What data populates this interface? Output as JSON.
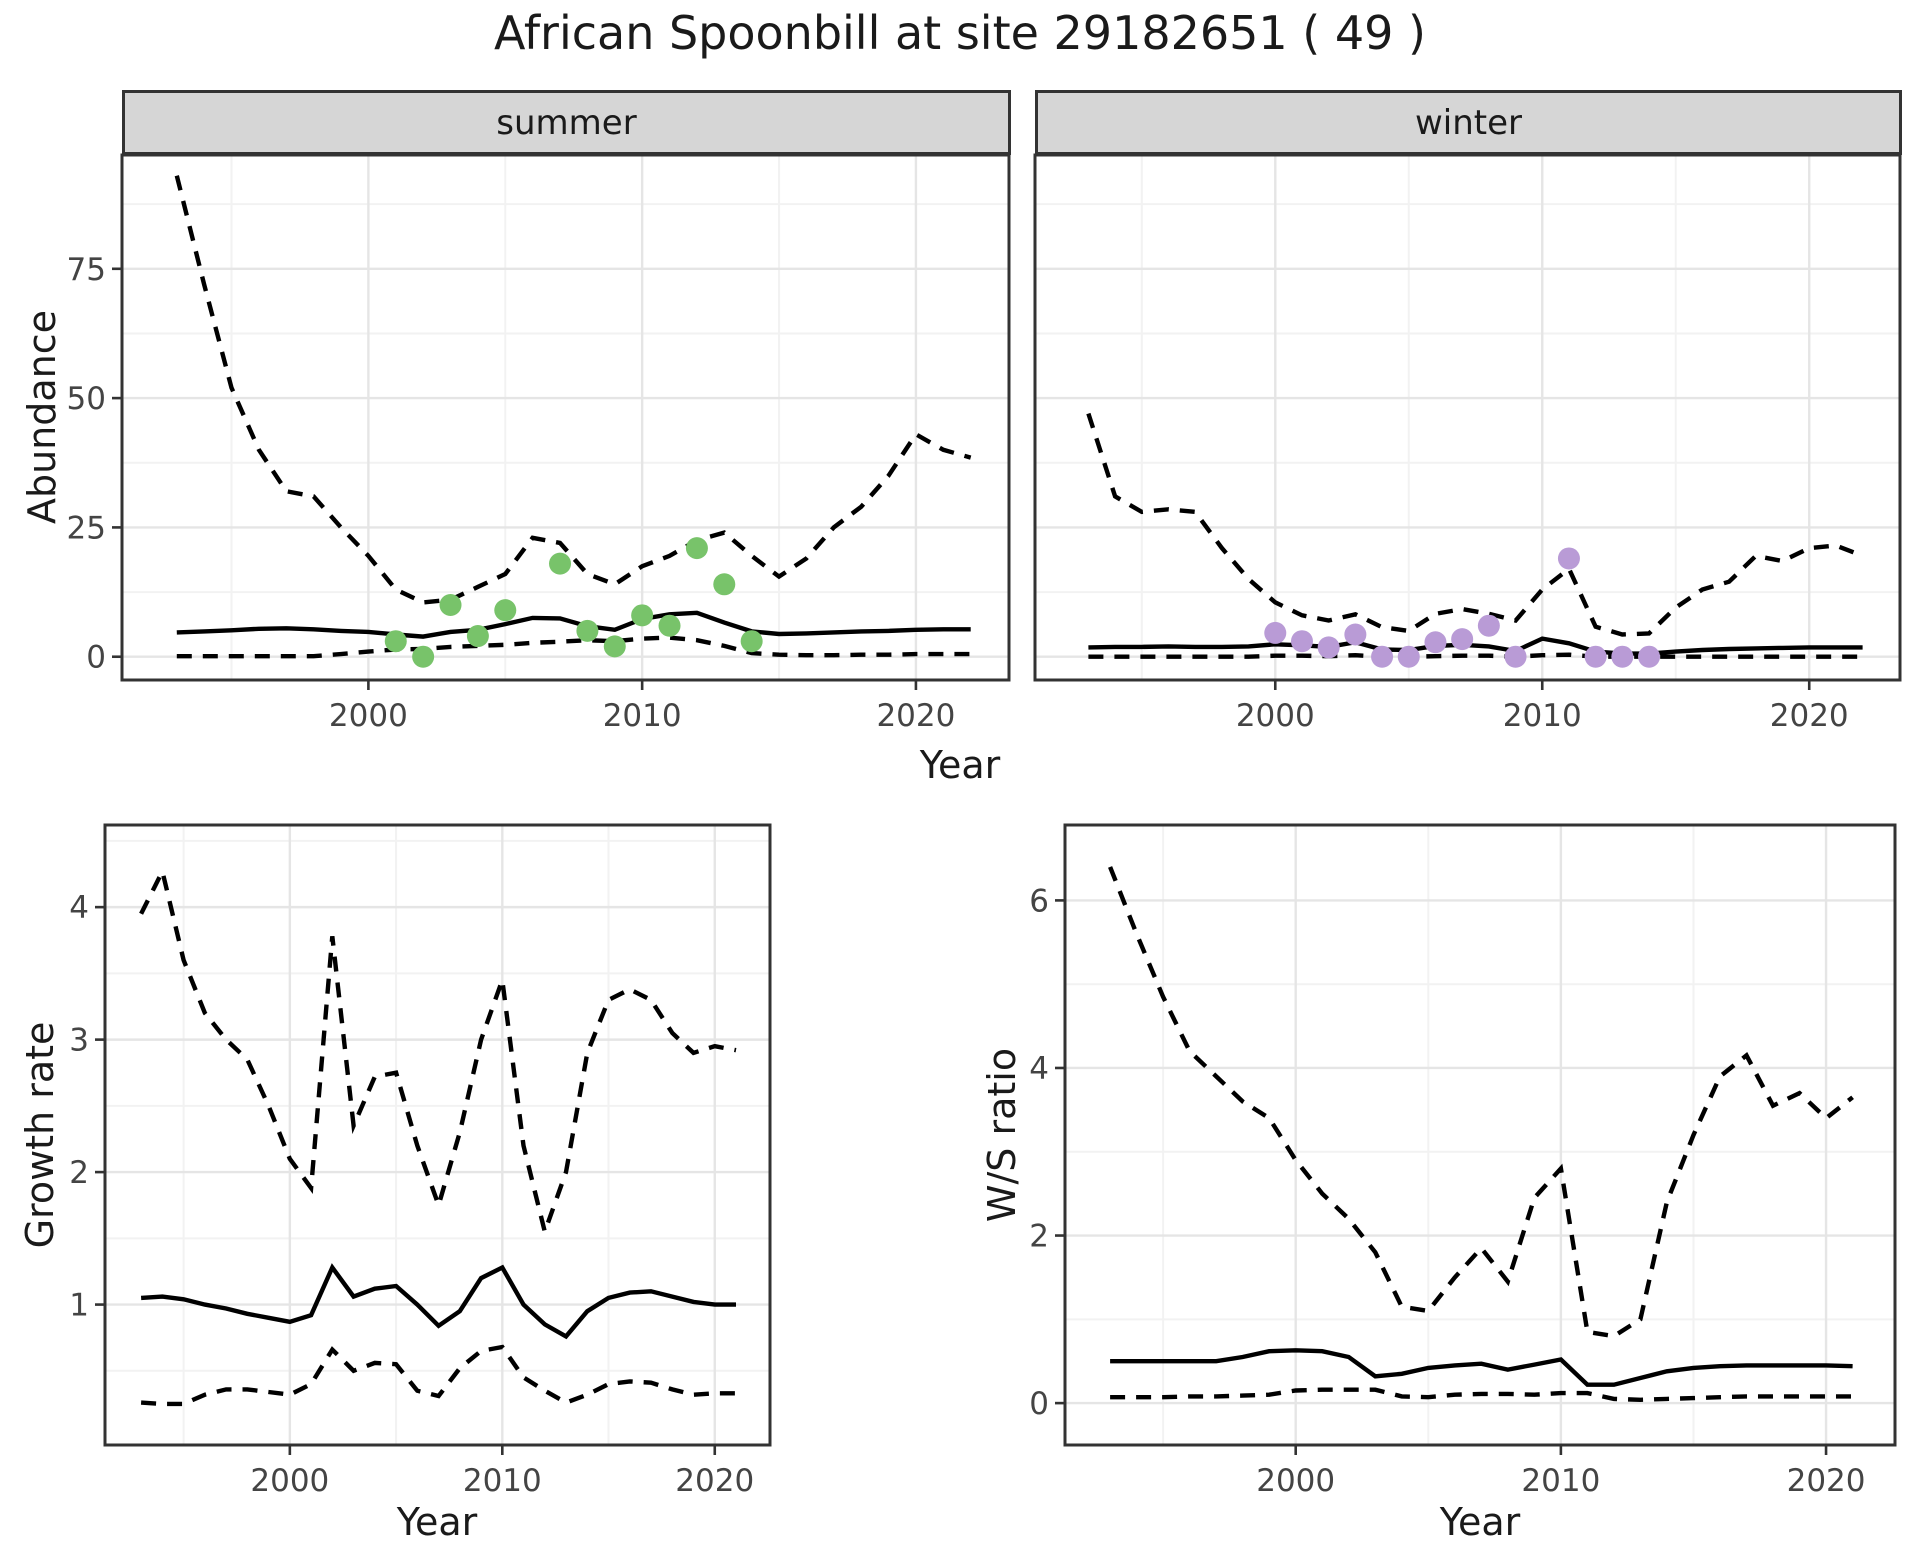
{
  "title": "African Spoonbill at site 29182651 ( 49 )",
  "facets": [
    {
      "label": "summer"
    },
    {
      "label": "winter"
    }
  ],
  "axes": {
    "x_label": "Year",
    "abundance_label": "Abundance",
    "growth_label": "Growth rate",
    "ws_label": "W/S ratio"
  },
  "colors": {
    "line": "#000000",
    "summer_point": "#78c36a",
    "winter_point": "#b99bd6",
    "strip_bg": "#d6d6d6",
    "panel_border": "#333333",
    "grid_major": "#e5e5e5",
    "grid_minor": "#f2f2f2",
    "tick_text": "#444444"
  },
  "chart_data": [
    {
      "type": "line",
      "panel": "summer-abundance",
      "facet": "summer",
      "xlabel": "Year",
      "ylabel": "Abundance",
      "xticks": [
        2000,
        2010,
        2020
      ],
      "yticks": [
        0,
        25,
        50,
        75
      ],
      "xlim": [
        1991,
        2023.4
      ],
      "ylim": [
        -4.5,
        97
      ],
      "years": [
        1993,
        1994,
        1995,
        1996,
        1997,
        1998,
        1999,
        2000,
        2001,
        2002,
        2003,
        2004,
        2005,
        2006,
        2007,
        2008,
        2009,
        2010,
        2011,
        2012,
        2013,
        2014,
        2015,
        2016,
        2017,
        2018,
        2019,
        2020,
        2021,
        2022
      ],
      "series": [
        {
          "name": "upper_ci",
          "style": "dashed",
          "values": [
            93,
            72,
            52,
            40,
            32,
            31,
            25,
            19.5,
            13,
            10.5,
            11,
            13.5,
            16,
            23,
            22,
            16,
            14,
            17.5,
            19.5,
            22.5,
            24,
            19.5,
            15.5,
            19,
            25,
            29,
            35,
            43,
            40,
            38.5
          ]
        },
        {
          "name": "median",
          "style": "solid",
          "values": [
            4.7,
            4.9,
            5.1,
            5.4,
            5.5,
            5.3,
            5.0,
            4.8,
            4.3,
            3.9,
            4.8,
            5.2,
            6.3,
            7.5,
            7.4,
            5.9,
            5.2,
            7.3,
            8.2,
            8.5,
            6.6,
            4.9,
            4.4,
            4.5,
            4.7,
            4.9,
            5.0,
            5.2,
            5.3,
            5.3
          ]
        },
        {
          "name": "lower_ci",
          "style": "dashed",
          "values": [
            0.1,
            0.1,
            0.1,
            0.1,
            0.1,
            0.1,
            0.5,
            1,
            1.4,
            1.5,
            1.9,
            2.1,
            2.3,
            2.7,
            2.9,
            3.2,
            3,
            3.5,
            3.7,
            3.2,
            2.1,
            0.7,
            0.4,
            0.3,
            0.3,
            0.4,
            0.4,
            0.5,
            0.5,
            0.5
          ]
        }
      ],
      "points": {
        "color_key": "summer_point",
        "data": [
          [
            2001,
            3
          ],
          [
            2002,
            0
          ],
          [
            2003,
            10
          ],
          [
            2004,
            4
          ],
          [
            2005,
            9
          ],
          [
            2007,
            18
          ],
          [
            2008,
            5
          ],
          [
            2009,
            2
          ],
          [
            2010,
            8
          ],
          [
            2011,
            6
          ],
          [
            2012,
            21
          ],
          [
            2013,
            14
          ],
          [
            2014,
            3
          ]
        ]
      }
    },
    {
      "type": "line",
      "panel": "winter-abundance",
      "facet": "winter",
      "xlabel": "Year",
      "ylabel": "Abundance",
      "xticks": [
        2000,
        2010,
        2020
      ],
      "yticks": [
        0,
        25,
        50,
        75
      ],
      "xlim": [
        1991,
        2023.4
      ],
      "ylim": [
        -4.5,
        97
      ],
      "years": [
        1993,
        1994,
        1995,
        1996,
        1997,
        1998,
        1999,
        2000,
        2001,
        2002,
        2003,
        2004,
        2005,
        2006,
        2007,
        2008,
        2009,
        2010,
        2011,
        2012,
        2013,
        2014,
        2015,
        2016,
        2017,
        2018,
        2019,
        2020,
        2021,
        2022
      ],
      "series": [
        {
          "name": "upper_ci",
          "style": "dashed",
          "values": [
            47,
            31,
            28,
            28.5,
            28,
            21,
            15,
            10.5,
            8,
            7,
            8.2,
            5.7,
            5,
            8.3,
            9.2,
            8.3,
            7,
            13,
            17,
            5.8,
            4.3,
            4.5,
            9.5,
            13,
            14.5,
            19.5,
            18.5,
            21,
            21.5,
            19.5
          ]
        },
        {
          "name": "median",
          "style": "solid",
          "values": [
            1.8,
            1.9,
            1.9,
            2.0,
            1.9,
            1.9,
            2.0,
            2.4,
            2.2,
            1.9,
            2.8,
            1.4,
            1.3,
            2.1,
            2.3,
            2.0,
            1.1,
            3.5,
            2.6,
            1.0,
            0.6,
            0.6,
            1.0,
            1.3,
            1.5,
            1.6,
            1.7,
            1.8,
            1.8,
            1.8
          ]
        },
        {
          "name": "lower_ci",
          "style": "dashed",
          "values": [
            0,
            0,
            0,
            0,
            0,
            0,
            0,
            0.2,
            0.2,
            0.1,
            0.3,
            0,
            0,
            0.1,
            0.2,
            0.2,
            0,
            0.3,
            0.4,
            0,
            0,
            0,
            0,
            0,
            0,
            0,
            0,
            0,
            0,
            0
          ]
        }
      ],
      "points": {
        "color_key": "winter_point",
        "data": [
          [
            2000,
            4.6
          ],
          [
            2001,
            3
          ],
          [
            2002,
            1.8
          ],
          [
            2003,
            4.3
          ],
          [
            2004,
            0
          ],
          [
            2005,
            0
          ],
          [
            2006,
            2.8
          ],
          [
            2007,
            3.4
          ],
          [
            2008,
            6
          ],
          [
            2009,
            0
          ],
          [
            2011,
            19
          ],
          [
            2012,
            0
          ],
          [
            2013,
            0
          ],
          [
            2014,
            0
          ]
        ]
      }
    },
    {
      "type": "line",
      "panel": "growth-rate",
      "facet": "",
      "xlabel": "Year",
      "ylabel": "Growth rate",
      "xticks": [
        2000,
        2010,
        2020
      ],
      "yticks": [
        1,
        2,
        3,
        4
      ],
      "xlim": [
        1991.3,
        2022.6
      ],
      "ylim": [
        -0.06,
        4.62
      ],
      "years": [
        1993,
        1994,
        1995,
        1996,
        1997,
        1998,
        1999,
        2000,
        2001,
        2002,
        2003,
        2004,
        2005,
        2006,
        2007,
        2008,
        2009,
        2010,
        2011,
        2012,
        2013,
        2014,
        2015,
        2016,
        2017,
        2018,
        2019,
        2020,
        2021
      ],
      "series": [
        {
          "name": "upper_ci",
          "style": "dashed",
          "values": [
            3.95,
            4.27,
            3.6,
            3.2,
            3.0,
            2.85,
            2.5,
            2.1,
            1.88,
            3.78,
            2.35,
            2.72,
            2.75,
            2.2,
            1.75,
            2.3,
            3.0,
            3.45,
            2.2,
            1.55,
            2.0,
            2.9,
            3.3,
            3.38,
            3.3,
            3.05,
            2.9,
            2.95,
            2.92
          ]
        },
        {
          "name": "median",
          "style": "solid",
          "values": [
            1.05,
            1.06,
            1.04,
            1.0,
            0.97,
            0.93,
            0.9,
            0.87,
            0.92,
            1.28,
            1.06,
            1.12,
            1.14,
            1.0,
            0.84,
            0.95,
            1.2,
            1.28,
            1.0,
            0.85,
            0.76,
            0.95,
            1.05,
            1.09,
            1.1,
            1.06,
            1.02,
            1.0,
            1.0
          ]
        },
        {
          "name": "lower_ci",
          "style": "dashed",
          "values": [
            0.26,
            0.25,
            0.25,
            0.32,
            0.36,
            0.36,
            0.34,
            0.32,
            0.4,
            0.66,
            0.5,
            0.56,
            0.55,
            0.35,
            0.31,
            0.52,
            0.65,
            0.68,
            0.45,
            0.35,
            0.26,
            0.32,
            0.4,
            0.42,
            0.41,
            0.36,
            0.32,
            0.33,
            0.33
          ]
        }
      ],
      "points": null
    },
    {
      "type": "line",
      "panel": "ws-ratio",
      "facet": "",
      "xlabel": "Year",
      "ylabel": "W/S ratio",
      "xticks": [
        2000,
        2010,
        2020
      ],
      "yticks": [
        0,
        2,
        4,
        6
      ],
      "xlim": [
        1991.3,
        2022.6
      ],
      "ylim": [
        -0.5,
        6.9
      ],
      "years": [
        1993,
        1994,
        1995,
        1996,
        1997,
        1998,
        1999,
        2000,
        2001,
        2002,
        2003,
        2004,
        2005,
        2006,
        2007,
        2008,
        2009,
        2010,
        2011,
        2012,
        2013,
        2014,
        2015,
        2016,
        2017,
        2018,
        2019,
        2020,
        2021
      ],
      "series": [
        {
          "name": "upper_ci",
          "style": "dashed",
          "values": [
            6.4,
            5.6,
            4.85,
            4.2,
            3.9,
            3.6,
            3.4,
            2.9,
            2.5,
            2.2,
            1.8,
            1.15,
            1.1,
            1.5,
            1.85,
            1.45,
            2.45,
            2.8,
            0.85,
            0.8,
            1.0,
            2.4,
            3.2,
            3.9,
            4.15,
            3.55,
            3.7,
            3.4,
            3.65
          ]
        },
        {
          "name": "median",
          "style": "solid",
          "values": [
            0.5,
            0.5,
            0.5,
            0.5,
            0.5,
            0.55,
            0.62,
            0.63,
            0.62,
            0.55,
            0.32,
            0.35,
            0.42,
            0.45,
            0.47,
            0.4,
            0.46,
            0.52,
            0.22,
            0.22,
            0.3,
            0.38,
            0.42,
            0.44,
            0.45,
            0.45,
            0.45,
            0.45,
            0.44
          ]
        },
        {
          "name": "lower_ci",
          "style": "dashed",
          "values": [
            0.07,
            0.07,
            0.07,
            0.08,
            0.08,
            0.09,
            0.1,
            0.15,
            0.16,
            0.16,
            0.16,
            0.08,
            0.07,
            0.1,
            0.11,
            0.11,
            0.1,
            0.12,
            0.12,
            0.05,
            0.04,
            0.05,
            0.06,
            0.07,
            0.08,
            0.08,
            0.08,
            0.08,
            0.08
          ]
        }
      ],
      "points": null
    }
  ]
}
